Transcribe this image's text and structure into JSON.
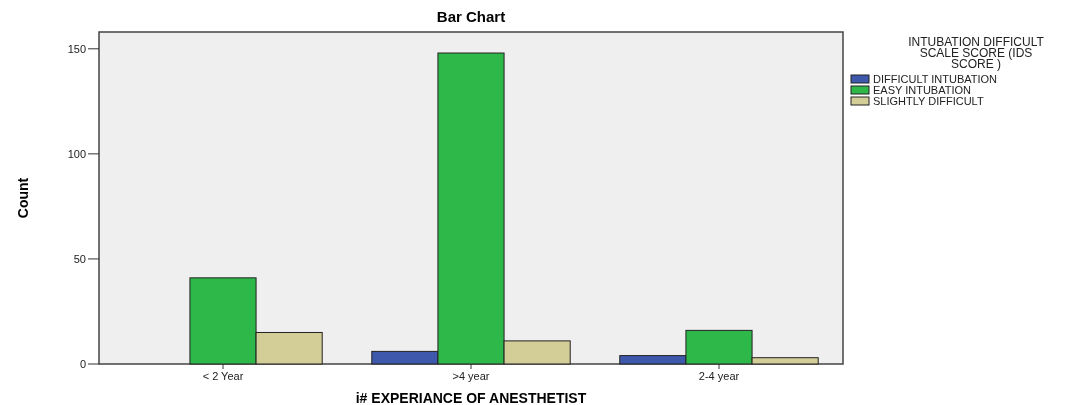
{
  "chart_data": {
    "type": "bar",
    "title": "Bar Chart",
    "xlabel": "i# EXPERIANCE OF ANESTHETIST",
    "ylabel": "Count",
    "legend_title": "INTUBATION DIFFICULT SCALE SCORE (IDS SCORE )",
    "legend": "right",
    "categories": [
      "< 2 Year",
      ">4 year",
      "2-4 year"
    ],
    "series": [
      {
        "name": "DIFFICULT  INTUBATION",
        "color": "#3e58ac",
        "values": [
          null,
          6,
          4
        ]
      },
      {
        "name": "EASY INTUBATION",
        "color": "#2fb84a",
        "values": [
          41,
          148,
          16
        ]
      },
      {
        "name": "SLIGHTLY DIFFICULT",
        "color": "#d3ce98",
        "values": [
          15,
          11,
          3
        ]
      }
    ],
    "ylim": [
      0,
      158
    ],
    "yticks": [
      0,
      50,
      100,
      150
    ],
    "grid": false
  }
}
